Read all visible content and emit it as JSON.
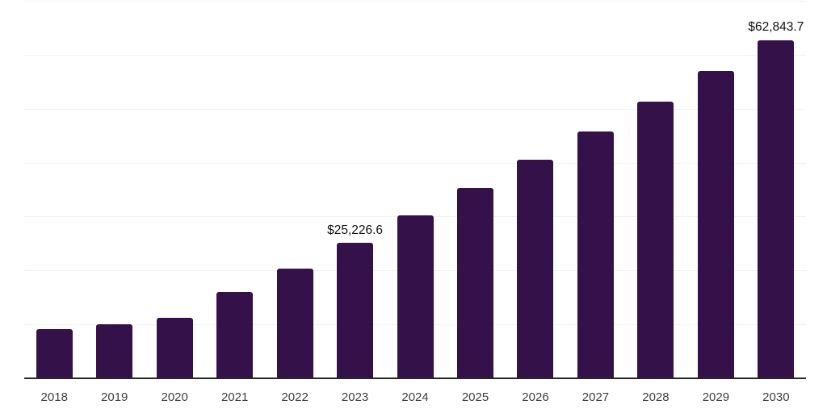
{
  "chart_data": {
    "type": "bar",
    "title": "",
    "categories": [
      "2018",
      "2019",
      "2020",
      "2021",
      "2022",
      "2023",
      "2024",
      "2025",
      "2026",
      "2027",
      "2028",
      "2029",
      "2030"
    ],
    "values": [
      9300,
      10200,
      11300,
      16100,
      20500,
      25226.6,
      30400,
      35400,
      40700,
      45900,
      51500,
      57100,
      62843.7
    ],
    "data_labels": [
      "",
      "",
      "",
      "",
      "",
      "$25,226.6",
      "",
      "",
      "",
      "",
      "",
      "",
      "$62,843.7"
    ],
    "xlabel": "",
    "ylabel": "",
    "ylim": [
      0,
      70000
    ],
    "ytick_step": 10000,
    "yticks_visible": false,
    "grid": "horizontal",
    "legend": "none"
  },
  "colors": {
    "bar": "#341148",
    "gridline": "#f2f2f2",
    "axis_line": "#262626",
    "x_label_text": "#404040",
    "value_label_text": "#111111",
    "background": "#ffffff"
  }
}
